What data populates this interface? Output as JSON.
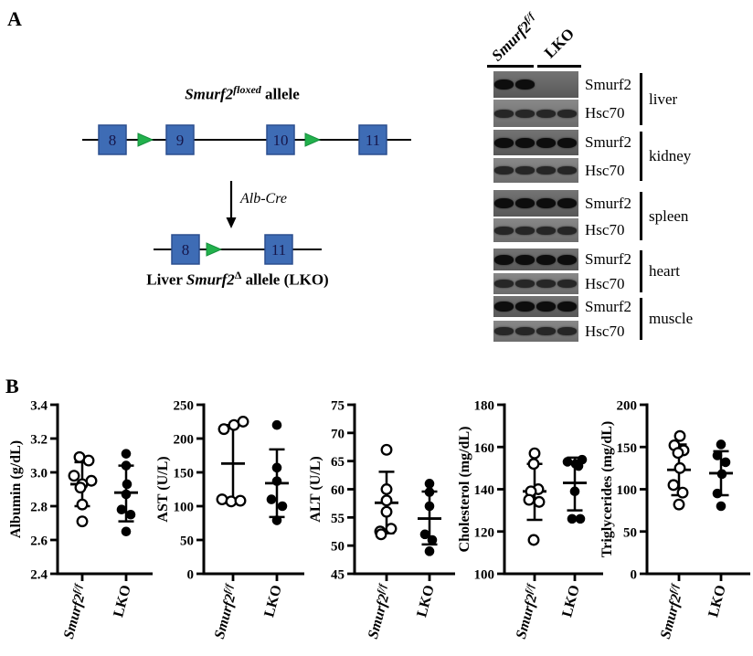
{
  "panel_a": {
    "label": "A",
    "diagram": {
      "title": {
        "gene": "Smurf2",
        "sup": "floxed",
        "suffix": " allele"
      },
      "floxed_exons": [
        "8",
        "9",
        "10",
        "11"
      ],
      "arrow_label": "Alb-Cre",
      "deleted_exons": [
        "8",
        "11"
      ],
      "bottom_label": {
        "prefix": "Liver ",
        "gene": "Smurf2",
        "sup": "Δ",
        "suffix": " allele (LKO)"
      },
      "colors": {
        "exon_fill": "#3e6cb5",
        "exon_border": "#2b4e8f",
        "exon_text": "#16164a",
        "loxp_fill": "#22b14c",
        "loxp_border": "#168f3e"
      }
    },
    "blot": {
      "col_headers": [
        {
          "gene": "Smurf2",
          "sup": "f/f"
        },
        {
          "gene": "LKO",
          "sup": ""
        }
      ],
      "colors": {
        "smurf2_bg": "#646464",
        "hsc70_bg": "#7b7b7b",
        "band_strong": "#0d0d0d",
        "band_soft": "#262626"
      },
      "tissues": [
        {
          "name": "liver",
          "rows": [
            {
              "protein": "Smurf2",
              "bands": [
                1,
                1,
                0,
                0
              ]
            },
            {
              "protein": "Hsc70",
              "bands": [
                1,
                1,
                1,
                1
              ]
            }
          ]
        },
        {
          "name": "kidney",
          "rows": [
            {
              "protein": "Smurf2",
              "bands": [
                1,
                1,
                1,
                1
              ]
            },
            {
              "protein": "Hsc70",
              "bands": [
                1,
                1,
                1,
                1
              ]
            }
          ]
        },
        {
          "name": "spleen",
          "rows": [
            {
              "protein": "Smurf2",
              "bands": [
                1,
                1,
                1,
                1
              ]
            },
            {
              "protein": "Hsc70",
              "bands": [
                1,
                1,
                1,
                1
              ]
            }
          ]
        },
        {
          "name": "heart",
          "rows": [
            {
              "protein": "Smurf2",
              "bands": [
                1,
                1,
                1,
                1
              ]
            },
            {
              "protein": "Hsc70",
              "bands": [
                1,
                1,
                1,
                1
              ]
            }
          ]
        },
        {
          "name": "muscle",
          "rows": [
            {
              "protein": "Smurf2",
              "bands": [
                1,
                1,
                1,
                1
              ]
            },
            {
              "protein": "Hsc70",
              "bands": [
                1,
                1,
                1,
                1
              ]
            }
          ]
        }
      ]
    }
  },
  "panel_b": {
    "label": "B"
  },
  "chart_data": [
    {
      "type": "scatter",
      "ylabel": "Albumin (g/dL)",
      "ylim": [
        2.4,
        3.4
      ],
      "yticks": [
        2.4,
        2.6,
        2.8,
        3.0,
        3.2,
        3.4
      ],
      "ytick_labels": [
        "2.4",
        "2.6",
        "2.8",
        "3.0",
        "3.2",
        "3.4"
      ],
      "groups": [
        {
          "label": {
            "gene": "Smurf2",
            "sup": "f/f"
          },
          "marker": "open",
          "points": [
            {
              "dx": -3,
              "v": 3.09
            },
            {
              "dx": 7,
              "v": 3.07
            },
            {
              "dx": -9,
              "v": 2.98
            },
            {
              "dx": 10,
              "v": 2.95
            },
            {
              "dx": 0,
              "v": 2.93
            },
            {
              "dx": -2,
              "v": 2.91
            },
            {
              "dx": 0,
              "v": 2.81
            },
            {
              "dx": 0,
              "v": 2.71
            }
          ],
          "mean": 2.93,
          "err": [
            2.8,
            3.06
          ]
        },
        {
          "label": {
            "gene": "LKO",
            "sup": ""
          },
          "marker": "filled",
          "points": [
            {
              "dx": 0,
              "v": 3.11
            },
            {
              "dx": 0,
              "v": 3.04
            },
            {
              "dx": 1,
              "v": 2.93
            },
            {
              "dx": 0,
              "v": 2.87
            },
            {
              "dx": -5,
              "v": 2.78
            },
            {
              "dx": 5,
              "v": 2.75
            },
            {
              "dx": 0,
              "v": 2.65
            }
          ],
          "mean": 2.88,
          "err": [
            2.71,
            3.04
          ]
        }
      ]
    },
    {
      "type": "scatter",
      "ylabel": "AST (U/L)",
      "ylim": [
        0,
        250
      ],
      "yticks": [
        0,
        50,
        100,
        150,
        200,
        250
      ],
      "ytick_labels": [
        "0",
        "50",
        "100",
        "150",
        "200",
        "250"
      ],
      "groups": [
        {
          "label": {
            "gene": "Smurf2",
            "sup": "f/f"
          },
          "marker": "open",
          "points": [
            {
              "dx": -10,
              "v": 214
            },
            {
              "dx": 1,
              "v": 220
            },
            {
              "dx": 11,
              "v": 225
            },
            {
              "dx": -12,
              "v": 110
            },
            {
              "dx": -2,
              "v": 107
            },
            {
              "dx": 8,
              "v": 108
            }
          ],
          "mean": 163,
          "err": [
            107,
            220
          ]
        },
        {
          "label": {
            "gene": "LKO",
            "sup": ""
          },
          "marker": "filled",
          "points": [
            {
              "dx": 0,
              "v": 220
            },
            {
              "dx": 0,
              "v": 157
            },
            {
              "dx": 0,
              "v": 137
            },
            {
              "dx": -6,
              "v": 110
            },
            {
              "dx": 6,
              "v": 100
            },
            {
              "dx": 0,
              "v": 79
            }
          ],
          "mean": 134,
          "err": [
            84,
            184
          ]
        }
      ]
    },
    {
      "type": "scatter",
      "ylabel": "ALT (U/L)",
      "ylim": [
        45,
        75
      ],
      "yticks": [
        45,
        50,
        55,
        60,
        65,
        70,
        75
      ],
      "ytick_labels": [
        "45",
        "50",
        "55",
        "60",
        "65",
        "70",
        "75"
      ],
      "groups": [
        {
          "label": {
            "gene": "Smurf2",
            "sup": "f/f"
          },
          "marker": "open",
          "points": [
            {
              "dx": 0,
              "v": 67
            },
            {
              "dx": 0,
              "v": 60
            },
            {
              "dx": 0,
              "v": 58
            },
            {
              "dx": 0,
              "v": 56
            },
            {
              "dx": -7,
              "v": 52.5
            },
            {
              "dx": 5,
              "v": 53
            },
            {
              "dx": -6,
              "v": 52
            }
          ],
          "mean": 57.6,
          "err": [
            52.2,
            63.1
          ]
        },
        {
          "label": {
            "gene": "LKO",
            "sup": ""
          },
          "marker": "filled",
          "points": [
            {
              "dx": 0,
              "v": 61
            },
            {
              "dx": 0,
              "v": 59.5
            },
            {
              "dx": 0,
              "v": 57
            },
            {
              "dx": -5,
              "v": 52
            },
            {
              "dx": 3,
              "v": 51
            },
            {
              "dx": 0,
              "v": 49
            }
          ],
          "mean": 54.8,
          "err": [
            50.2,
            59.6
          ]
        }
      ]
    },
    {
      "type": "scatter",
      "ylabel": "Cholesterol (mg/dL)",
      "ylim": [
        100,
        180
      ],
      "yticks": [
        100,
        120,
        140,
        160,
        180
      ],
      "ytick_labels": [
        "100",
        "120",
        "140",
        "160",
        "180"
      ],
      "groups": [
        {
          "label": {
            "gene": "Smurf2",
            "sup": "f/f"
          },
          "marker": "open",
          "points": [
            {
              "dx": 0,
              "v": 157
            },
            {
              "dx": -1,
              "v": 152
            },
            {
              "dx": 4,
              "v": 140
            },
            {
              "dx": -4,
              "v": 139
            },
            {
              "dx": -6,
              "v": 135
            },
            {
              "dx": 5,
              "v": 134
            },
            {
              "dx": -1,
              "v": 116
            }
          ],
          "mean": 139,
          "err": [
            125.5,
            152
          ]
        },
        {
          "label": {
            "gene": "LKO",
            "sup": ""
          },
          "marker": "filled",
          "points": [
            {
              "dx": -8,
              "v": 153
            },
            {
              "dx": 1,
              "v": 152
            },
            {
              "dx": 8,
              "v": 154
            },
            {
              "dx": 4,
              "v": 151
            },
            {
              "dx": 0,
              "v": 139
            },
            {
              "dx": -3,
              "v": 126
            },
            {
              "dx": 6,
              "v": 126
            }
          ],
          "mean": 143,
          "err": [
            130,
            155
          ]
        }
      ]
    },
    {
      "type": "scatter",
      "ylabel": "Triglycerides (mg/dL)",
      "ylim": [
        0,
        200
      ],
      "yticks": [
        0,
        50,
        100,
        150,
        200
      ],
      "ytick_labels": [
        "0",
        "50",
        "100",
        "150",
        "200"
      ],
      "groups": [
        {
          "label": {
            "gene": "Smurf2",
            "sup": "f/f"
          },
          "marker": "open",
          "points": [
            {
              "dx": 1,
              "v": 163
            },
            {
              "dx": -5,
              "v": 152
            },
            {
              "dx": 5,
              "v": 146
            },
            {
              "dx": -1,
              "v": 143
            },
            {
              "dx": 1,
              "v": 125
            },
            {
              "dx": -6,
              "v": 105
            },
            {
              "dx": 4,
              "v": 96
            },
            {
              "dx": 0,
              "v": 82
            }
          ],
          "mean": 123,
          "err": [
            93,
            153
          ]
        },
        {
          "label": {
            "gene": "LKO",
            "sup": ""
          },
          "marker": "filled",
          "points": [
            {
              "dx": 0,
              "v": 153
            },
            {
              "dx": -4,
              "v": 140
            },
            {
              "dx": 5,
              "v": 132
            },
            {
              "dx": 1,
              "v": 118
            },
            {
              "dx": -4,
              "v": 95
            },
            {
              "dx": 0,
              "v": 80
            }
          ],
          "mean": 119,
          "err": [
            93,
            145
          ]
        }
      ]
    }
  ]
}
